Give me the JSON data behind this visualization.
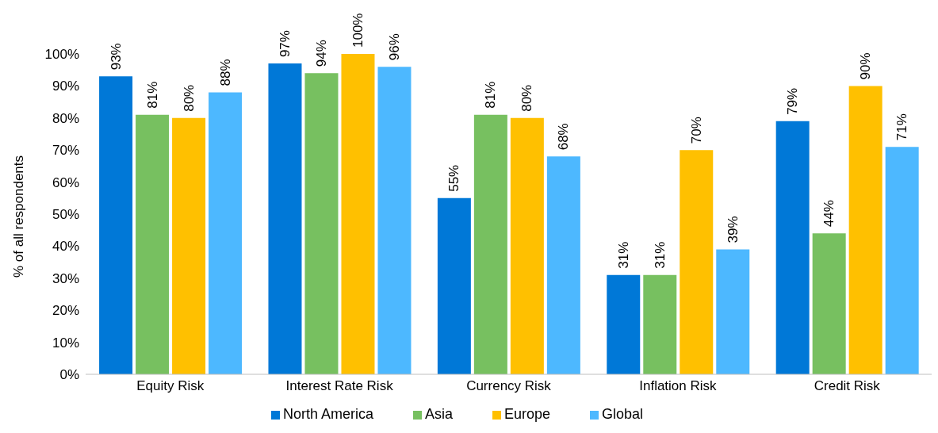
{
  "chart_data": {
    "type": "bar",
    "ylabel": "% of all respondents",
    "categories": [
      "Equity Risk",
      "Interest Rate Risk",
      "Currency Risk",
      "Inflation Risk",
      "Credit Risk"
    ],
    "series": [
      {
        "name": "North America",
        "color": "#0078d7",
        "values": [
          93,
          97,
          55,
          31,
          79
        ],
        "value_labels": [
          "93%",
          "97%",
          "55%",
          "31%",
          "79%"
        ]
      },
      {
        "name": "Asia",
        "color": "#77c060",
        "values": [
          81,
          94,
          81,
          31,
          44
        ],
        "value_labels": [
          "81%",
          "94%",
          "81%",
          "31%",
          "44%"
        ]
      },
      {
        "name": "Europe",
        "color": "#ffc000",
        "values": [
          80,
          100,
          80,
          70,
          90
        ],
        "value_labels": [
          "80%",
          "100%",
          "80%",
          "70%",
          "90%"
        ]
      },
      {
        "name": "Global",
        "color": "#4db8ff",
        "values": [
          88,
          96,
          68,
          39,
          71
        ],
        "value_labels": [
          "88%",
          "96%",
          "68%",
          "39%",
          "71%"
        ]
      }
    ],
    "ylim": [
      0,
      100
    ],
    "yticks": [
      {
        "value": 0,
        "label": "0%"
      },
      {
        "value": 10,
        "label": "10%"
      },
      {
        "value": 20,
        "label": "20%"
      },
      {
        "value": 30,
        "label": "30%"
      },
      {
        "value": 40,
        "label": "40%"
      },
      {
        "value": 50,
        "label": "50%"
      },
      {
        "value": 60,
        "label": "60%"
      },
      {
        "value": 70,
        "label": "70%"
      },
      {
        "value": 80,
        "label": "80%"
      },
      {
        "value": 90,
        "label": "90%"
      },
      {
        "value": 100,
        "label": "100%"
      }
    ],
    "grid": false,
    "legend": "bottom"
  }
}
